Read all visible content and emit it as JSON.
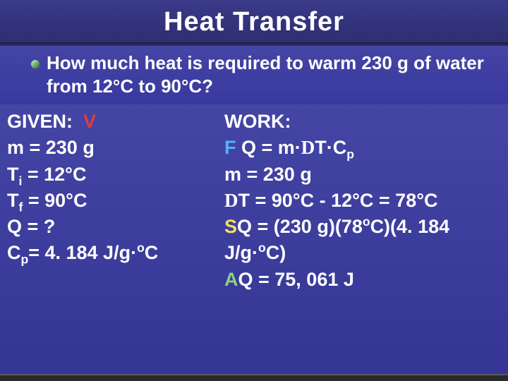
{
  "title": "Heat Transfer",
  "question": "How much heat is required to warm 230 g of water from 12°C to 90°C?",
  "given": {
    "label": "GIVEN:",
    "V": "V",
    "m": "m = 230 g",
    "Ti_pre": "T",
    "Ti_sub": "i",
    "Ti_post": " = 12°C",
    "Tf_pre": "T",
    "Tf_sub": "f",
    "Tf_post": " = 90°C",
    "Q": "Q = ?",
    "Cp_pre": "C",
    "Cp_sub": "p",
    "Cp_mid": "= 4. 184 J/g·",
    "Cp_sup": "o",
    "Cp_end": "C"
  },
  "work": {
    "label": "WORK:",
    "F": "F",
    "formula_pre": " Q = m·",
    "formula_delta": "D",
    "formula_mid": "T·C",
    "formula_sub": "p",
    "m": "m = 230 g",
    "dT_delta": "D",
    "dT_rest": "T = 90°C - 12°C = 78°C",
    "S": "S",
    "sq_pre": "Q = (230 g)(78",
    "sq_sup1": "o",
    "sq_mid": "C)(4. 184",
    "sq_line2_pre": "J/g·",
    "sq_sup2": "o",
    "sq_line2_end": "C)",
    "A": "A",
    "ans": "Q = 75, 061 J"
  },
  "colors": {
    "bg_top": "#3a3a8a",
    "bg_main": "#4545a5",
    "text": "#ffffff",
    "red": "#d94040",
    "blue": "#5ab0ff",
    "yellow": "#f0e060",
    "green": "#8ad080",
    "bullet": "#6eb86e"
  }
}
